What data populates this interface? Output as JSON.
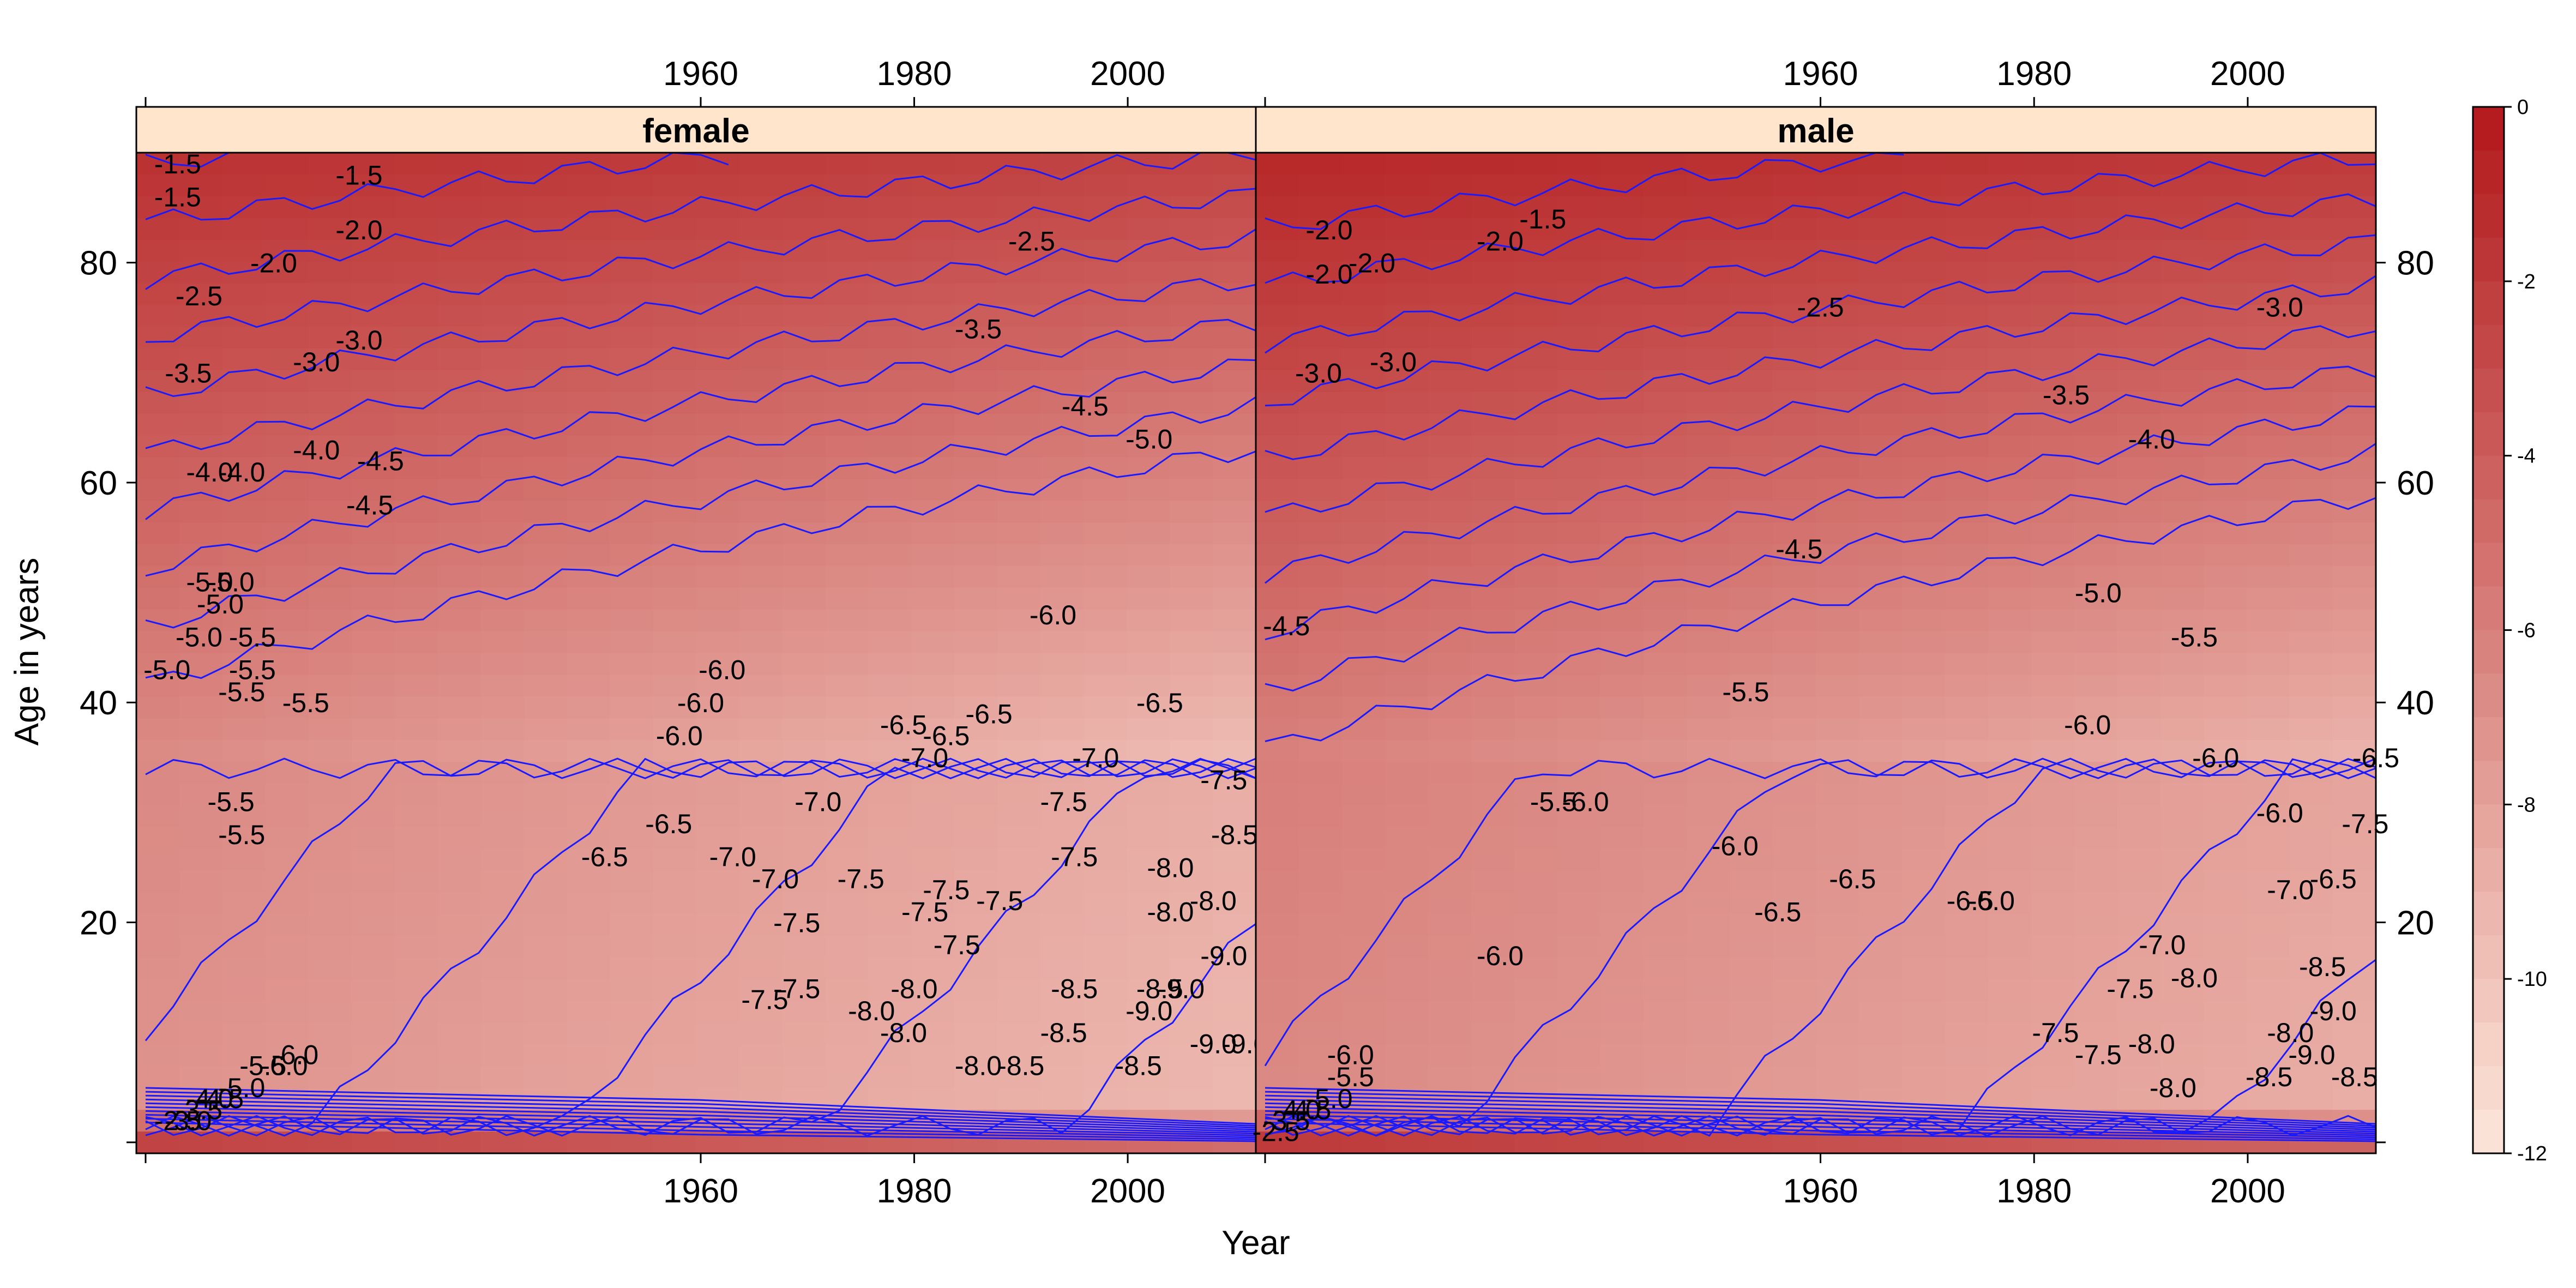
{
  "chart_data": {
    "type": "heatmap",
    "subtype": "filled-contour (levelplot) of log mortality rate",
    "xlabel": "Year",
    "ylabel": "Age in years",
    "xlim": [
      1908,
      2012
    ],
    "ylim": [
      0,
      90
    ],
    "xticks": [
      "1960",
      "1980",
      "2000"
    ],
    "yticks": [
      "20",
      "40",
      "60",
      "80"
    ],
    "panels": [
      {
        "name": "female",
        "xlim": [
          1908,
          2012
        ]
      },
      {
        "name": "male",
        "xlim": [
          1908,
          2012
        ]
      }
    ],
    "colorbar": {
      "range": [
        -12,
        0
      ],
      "ticks": [
        "0",
        "-2",
        "-4",
        "-6",
        "-8",
        "-10",
        "-12"
      ],
      "scale": "red sequential, dark red at 0, pale at -12",
      "color_high": "#b2181b",
      "color_low": "#fde6da"
    },
    "contour_color": "#1a1aff",
    "strip_color": "#ffe5cc",
    "contour_levels": [
      -1.5,
      -2.0,
      -2.5,
      -3.0,
      -3.5,
      -4.0,
      -4.5,
      -5.0,
      -5.5,
      -6.0,
      -6.5,
      -7.0,
      -7.5,
      -8.0,
      -8.5,
      -9.0
    ],
    "contour_labels": {
      "female": [
        {
          "text": "-1.5",
          "year": 1911,
          "age": 89
        },
        {
          "text": "-1.5",
          "year": 1911,
          "age": 86
        },
        {
          "text": "-1.5",
          "year": 1928,
          "age": 88
        },
        {
          "text": "-2.0",
          "year": 1928,
          "age": 83
        },
        {
          "text": "-2.0",
          "year": 1920,
          "age": 80
        },
        {
          "text": "-2.5",
          "year": 1913,
          "age": 77
        },
        {
          "text": "-2.5",
          "year": 1991,
          "age": 82
        },
        {
          "text": "-3.0",
          "year": 1928,
          "age": 73
        },
        {
          "text": "-3.0",
          "year": 1924,
          "age": 71
        },
        {
          "text": "-3.5",
          "year": 1912,
          "age": 70
        },
        {
          "text": "-3.5",
          "year": 1986,
          "age": 74
        },
        {
          "text": "-4.0",
          "year": 1924,
          "age": 63
        },
        {
          "text": "-4.0",
          "year": 1914,
          "age": 61
        },
        {
          "text": "-4.0",
          "year": 1917,
          "age": 61
        },
        {
          "text": "-4.5",
          "year": 1930,
          "age": 62
        },
        {
          "text": "-4.5",
          "year": 1929,
          "age": 58
        },
        {
          "text": "-4.5",
          "year": 1996,
          "age": 67
        },
        {
          "text": "-5.0",
          "year": 2002,
          "age": 64
        },
        {
          "text": "-5.0",
          "year": 1914,
          "age": 51
        },
        {
          "text": "-5.0",
          "year": 1915,
          "age": 49
        },
        {
          "text": "-5.0",
          "year": 1913,
          "age": 46
        },
        {
          "text": "-5.0",
          "year": 1916,
          "age": 51
        },
        {
          "text": "-5.0",
          "year": 1910,
          "age": 43
        },
        {
          "text": "-5.5",
          "year": 1918,
          "age": 46
        },
        {
          "text": "-5.5",
          "year": 1918,
          "age": 43
        },
        {
          "text": "-5.5",
          "year": 1917,
          "age": 41
        },
        {
          "text": "-5.5",
          "year": 1923,
          "age": 40
        },
        {
          "text": "-5.5",
          "year": 1916,
          "age": 31
        },
        {
          "text": "-5.5",
          "year": 1917,
          "age": 28
        },
        {
          "text": "-6.0",
          "year": 1962,
          "age": 43
        },
        {
          "text": "-6.0",
          "year": 1960,
          "age": 40
        },
        {
          "text": "-6.0",
          "year": 1958,
          "age": 37
        },
        {
          "text": "-6.0",
          "year": 1993,
          "age": 48
        },
        {
          "text": "-6.0",
          "year": 1922,
          "age": 8
        },
        {
          "text": "-6.5",
          "year": 1951,
          "age": 26
        },
        {
          "text": "-6.5",
          "year": 1957,
          "age": 29
        },
        {
          "text": "-6.5",
          "year": 1979,
          "age": 38
        },
        {
          "text": "-6.5",
          "year": 1983,
          "age": 37
        },
        {
          "text": "-6.5",
          "year": 1987,
          "age": 39
        },
        {
          "text": "-6.5",
          "year": 2003,
          "age": 40
        },
        {
          "text": "-7.0",
          "year": 1963,
          "age": 26
        },
        {
          "text": "-7.0",
          "year": 1967,
          "age": 24
        },
        {
          "text": "-7.0",
          "year": 1971,
          "age": 31
        },
        {
          "text": "-7.0",
          "year": 1981,
          "age": 35
        },
        {
          "text": "-7.0",
          "year": 1997,
          "age": 35
        },
        {
          "text": "-7.5",
          "year": 1969,
          "age": 20
        },
        {
          "text": "-7.5",
          "year": 1975,
          "age": 24
        },
        {
          "text": "-7.5",
          "year": 1981,
          "age": 21
        },
        {
          "text": "-7.5",
          "year": 1983,
          "age": 23
        },
        {
          "text": "-7.5",
          "year": 1988,
          "age": 22
        },
        {
          "text": "-7.5",
          "year": 1984,
          "age": 18
        },
        {
          "text": "-7.5",
          "year": 1966,
          "age": 13
        },
        {
          "text": "-7.5",
          "year": 1969,
          "age": 14
        },
        {
          "text": "-7.5",
          "year": 1994,
          "age": 31
        },
        {
          "text": "-7.5",
          "year": 1995,
          "age": 26
        },
        {
          "text": "-7.5",
          "year": 2009,
          "age": 33
        },
        {
          "text": "-8.0",
          "year": 1976,
          "age": 12
        },
        {
          "text": "-8.0",
          "year": 1979,
          "age": 10
        },
        {
          "text": "-8.0",
          "year": 1980,
          "age": 14
        },
        {
          "text": "-8.0",
          "year": 1986,
          "age": 7
        },
        {
          "text": "-8.0",
          "year": 2004,
          "age": 25
        },
        {
          "text": "-8.0",
          "year": 2004,
          "age": 21
        },
        {
          "text": "-8.0",
          "year": 2008,
          "age": 22
        },
        {
          "text": "-8.5",
          "year": 1995,
          "age": 14
        },
        {
          "text": "-8.5",
          "year": 1994,
          "age": 10
        },
        {
          "text": "-8.5",
          "year": 2001,
          "age": 7
        },
        {
          "text": "-8.5",
          "year": 2003,
          "age": 14
        },
        {
          "text": "-8.5",
          "year": 2010,
          "age": 28
        },
        {
          "text": "-8.5",
          "year": 1990,
          "age": 7
        },
        {
          "text": "-9.0",
          "year": 2002,
          "age": 12
        },
        {
          "text": "-9.0",
          "year": 2005,
          "age": 14
        },
        {
          "text": "-9.0",
          "year": 2008,
          "age": 9
        },
        {
          "text": "-9.0",
          "year": 2009,
          "age": 17
        },
        {
          "text": "-9.0",
          "year": 2011,
          "age": 9
        },
        {
          "text": "-3.0",
          "year": 1912,
          "age": 2
        },
        {
          "text": "-3.5",
          "year": 1913,
          "age": 3
        },
        {
          "text": "-4.0",
          "year": 1914,
          "age": 4
        },
        {
          "text": "-4.5",
          "year": 1915,
          "age": 4
        },
        {
          "text": "-5.0",
          "year": 1917,
          "age": 5
        },
        {
          "text": "-5.5",
          "year": 1919,
          "age": 7
        },
        {
          "text": "-6.0",
          "year": 1921,
          "age": 7
        },
        {
          "text": "-2.5",
          "year": 1911,
          "age": 2
        }
      ],
      "male": [
        {
          "text": "-1.5",
          "year": 1934,
          "age": 84
        },
        {
          "text": "-2.0",
          "year": 1914,
          "age": 83
        },
        {
          "text": "-2.0",
          "year": 1918,
          "age": 80
        },
        {
          "text": "-2.0",
          "year": 1914,
          "age": 79
        },
        {
          "text": "-2.0",
          "year": 1930,
          "age": 82
        },
        {
          "text": "-2.5",
          "year": 1960,
          "age": 76
        },
        {
          "text": "-3.0",
          "year": 1913,
          "age": 70
        },
        {
          "text": "-3.0",
          "year": 1920,
          "age": 71
        },
        {
          "text": "-3.0",
          "year": 2003,
          "age": 76
        },
        {
          "text": "-3.5",
          "year": 1983,
          "age": 68
        },
        {
          "text": "-4.0",
          "year": 1991,
          "age": 64
        },
        {
          "text": "-4.5",
          "year": 1958,
          "age": 54
        },
        {
          "text": "-4.5",
          "year": 1910,
          "age": 47
        },
        {
          "text": "-5.0",
          "year": 1986,
          "age": 50
        },
        {
          "text": "-5.5",
          "year": 1953,
          "age": 41
        },
        {
          "text": "-5.5",
          "year": 1935,
          "age": 31
        },
        {
          "text": "-5.5",
          "year": 1995,
          "age": 46
        },
        {
          "text": "-6.0",
          "year": 1938,
          "age": 31
        },
        {
          "text": "-6.0",
          "year": 1952,
          "age": 27
        },
        {
          "text": "-6.0",
          "year": 1976,
          "age": 22
        },
        {
          "text": "-6.0",
          "year": 1985,
          "age": 38
        },
        {
          "text": "-6.0",
          "year": 1997,
          "age": 35
        },
        {
          "text": "-6.0",
          "year": 2003,
          "age": 30
        },
        {
          "text": "-6.0",
          "year": 1930,
          "age": 17
        },
        {
          "text": "-6.0",
          "year": 1916,
          "age": 8
        },
        {
          "text": "-6.5",
          "year": 1956,
          "age": 21
        },
        {
          "text": "-6.5",
          "year": 1963,
          "age": 24
        },
        {
          "text": "-6.5",
          "year": 1974,
          "age": 22
        },
        {
          "text": "-6.5",
          "year": 2008,
          "age": 24
        },
        {
          "text": "-6.5",
          "year": 2012,
          "age": 35
        },
        {
          "text": "-7.0",
          "year": 1992,
          "age": 18
        },
        {
          "text": "-7.0",
          "year": 2004,
          "age": 23
        },
        {
          "text": "-7.5",
          "year": 1989,
          "age": 14
        },
        {
          "text": "-7.5",
          "year": 1982,
          "age": 10
        },
        {
          "text": "-7.5",
          "year": 1986,
          "age": 8
        },
        {
          "text": "-7.5",
          "year": 2011,
          "age": 29
        },
        {
          "text": "-8.0",
          "year": 1991,
          "age": 9
        },
        {
          "text": "-8.0",
          "year": 1995,
          "age": 15
        },
        {
          "text": "-8.0",
          "year": 1993,
          "age": 5
        },
        {
          "text": "-8.0",
          "year": 2004,
          "age": 10
        },
        {
          "text": "-8.5",
          "year": 2002,
          "age": 6
        },
        {
          "text": "-8.5",
          "year": 2007,
          "age": 16
        },
        {
          "text": "-8.5",
          "year": 2010,
          "age": 6
        },
        {
          "text": "-9.0",
          "year": 2008,
          "age": 12
        },
        {
          "text": "-9.0",
          "year": 2006,
          "age": 8
        },
        {
          "text": "-3.5",
          "year": 1910,
          "age": 2
        },
        {
          "text": "-4.0",
          "year": 1911,
          "age": 3
        },
        {
          "text": "-4.5",
          "year": 1912,
          "age": 3
        },
        {
          "text": "-5.0",
          "year": 1914,
          "age": 4
        },
        {
          "text": "-5.5",
          "year": 1916,
          "age": 6
        },
        {
          "text": "-2.5",
          "year": 1909,
          "age": 1
        }
      ]
    }
  }
}
